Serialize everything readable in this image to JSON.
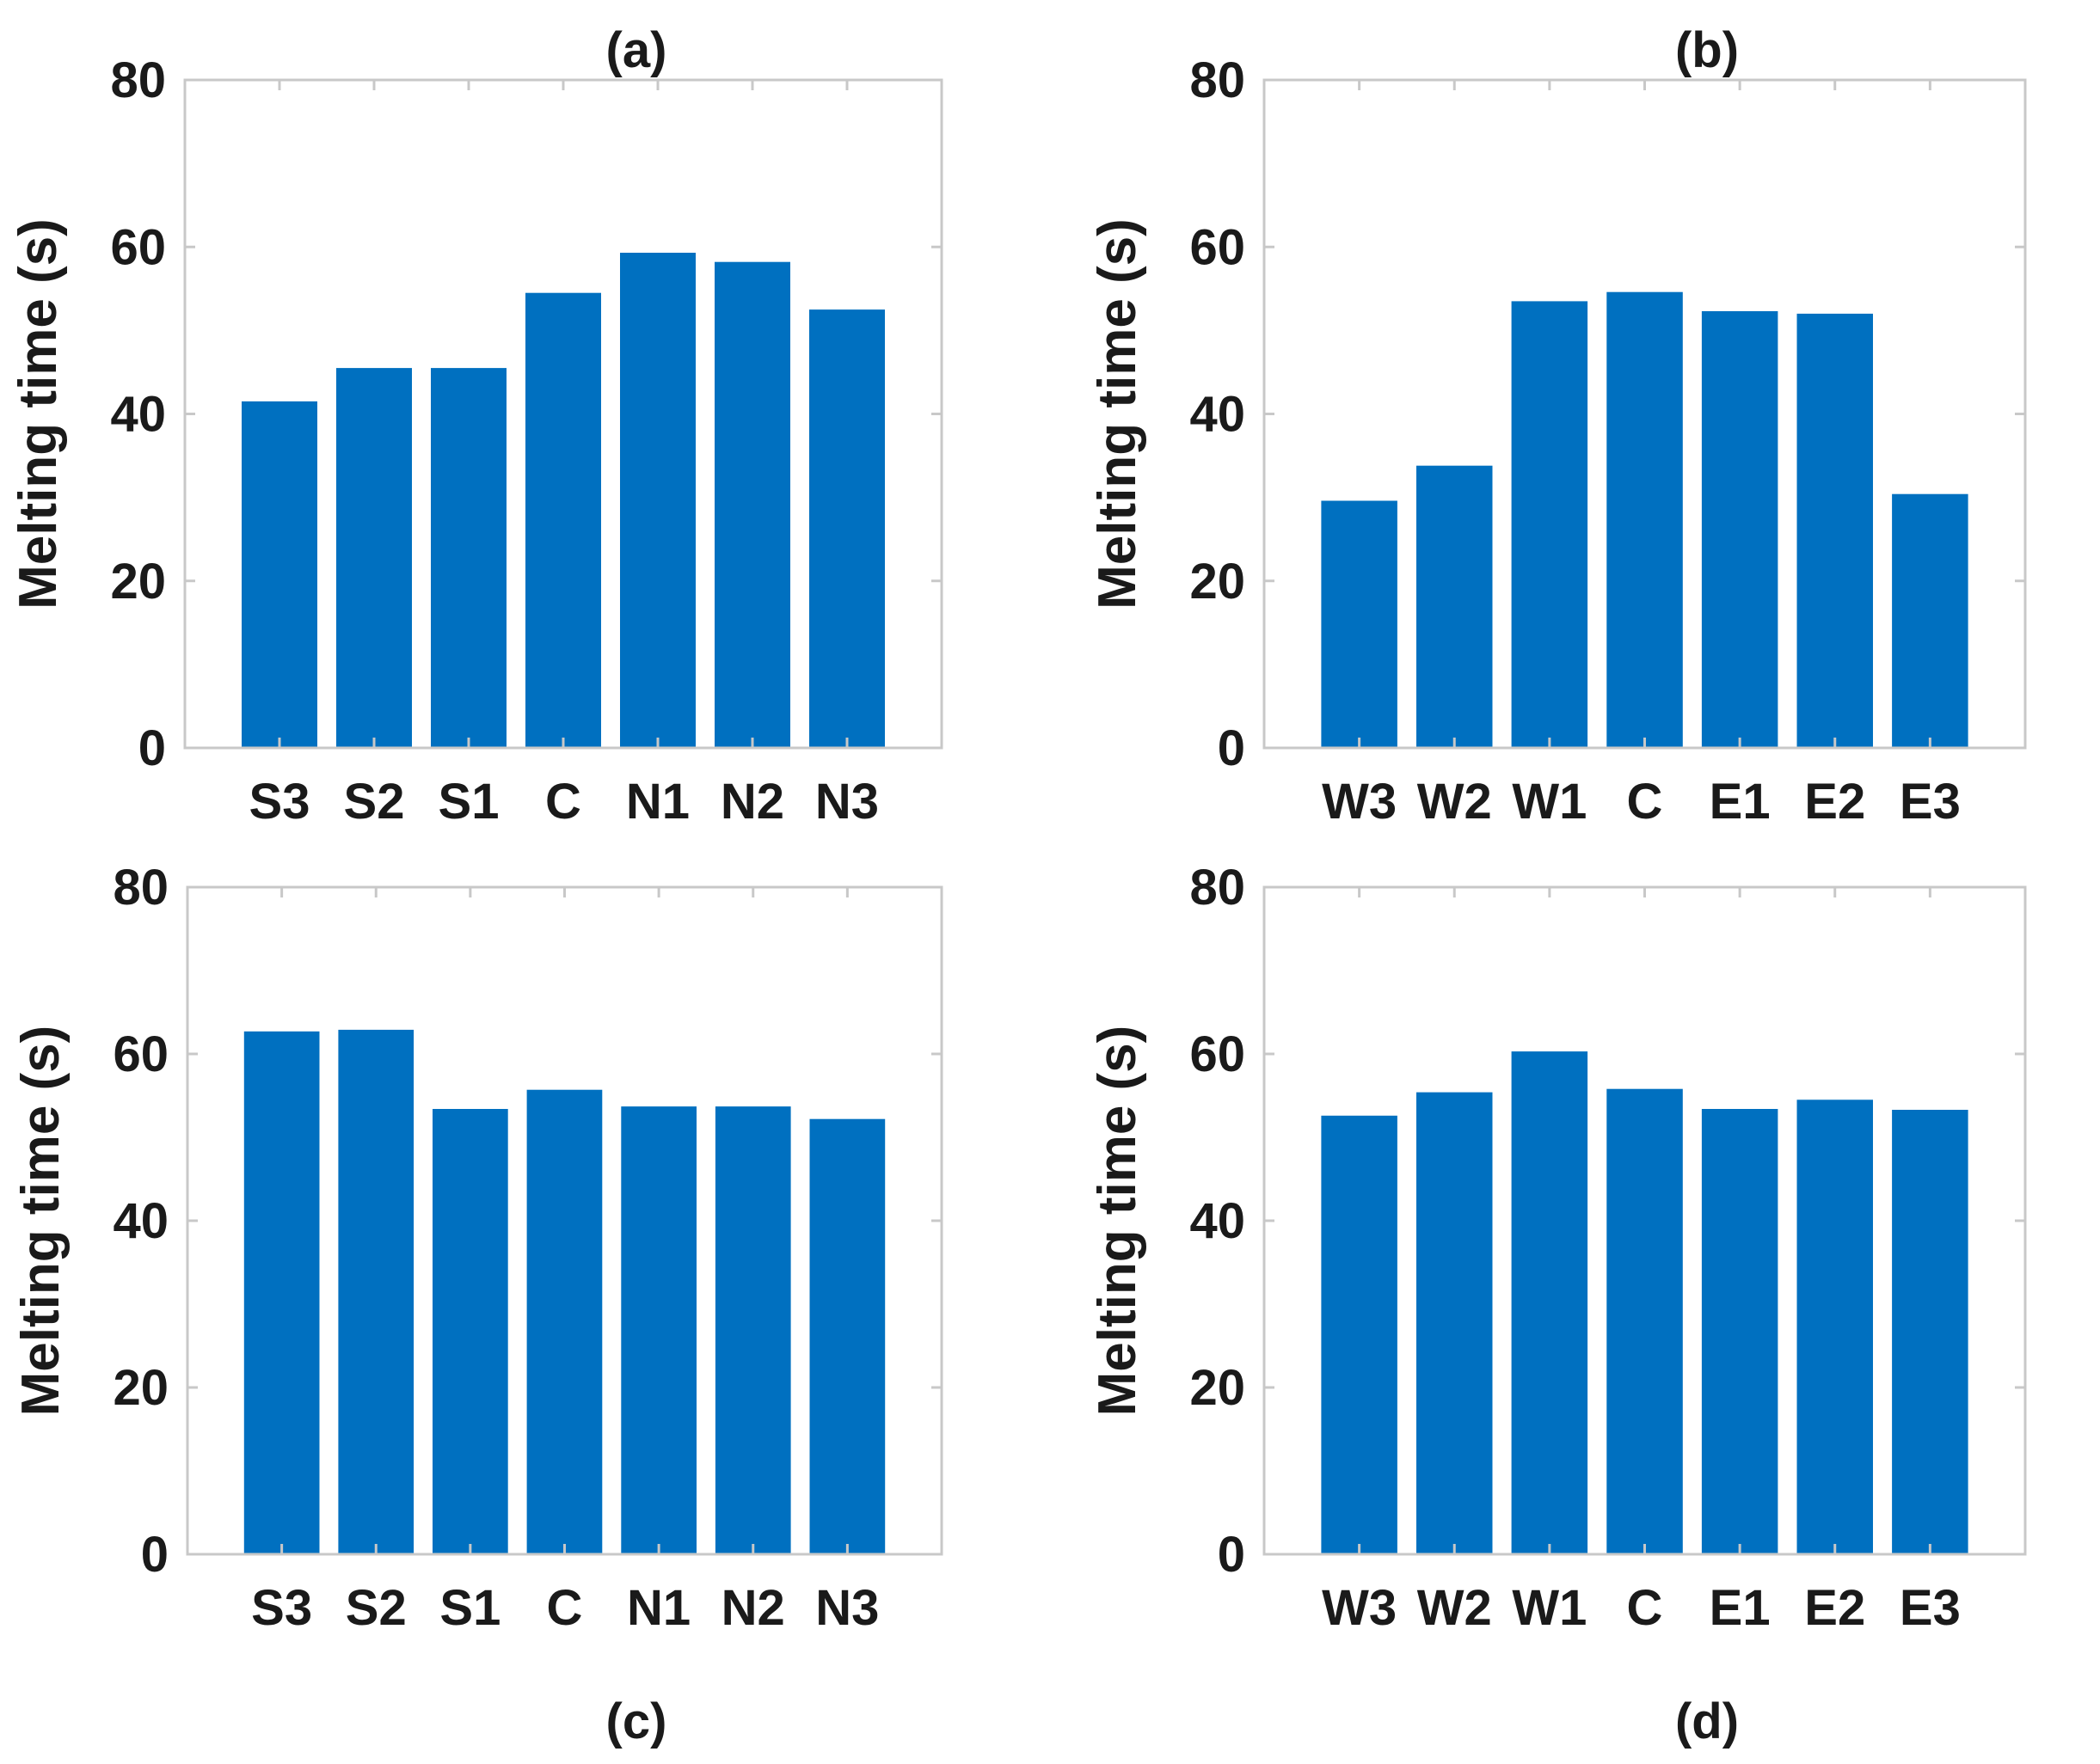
{
  "chart_data": [
    {
      "type": "bar",
      "panel_label": "(a)",
      "label_position": "top",
      "categories": [
        "S3",
        "S2",
        "S1",
        "C",
        "N1",
        "N2",
        "N3"
      ],
      "values": [
        41.5,
        45.5,
        45.5,
        54.5,
        59.3,
        58.2,
        52.5
      ],
      "ylabel": "Melting time (s)",
      "ylim": [
        0,
        80
      ],
      "yticks": [
        0,
        20,
        40,
        60,
        80
      ],
      "grid": false,
      "bar_color": "#0070c0"
    },
    {
      "type": "bar",
      "panel_label": "(b)",
      "label_position": "top",
      "categories": [
        "W3",
        "W2",
        "W1",
        "C",
        "E1",
        "E2",
        "E3"
      ],
      "values": [
        29.6,
        33.8,
        53.5,
        54.6,
        52.3,
        52.0,
        30.4
      ],
      "ylabel": "Melting time (s)",
      "ylim": [
        0,
        80
      ],
      "yticks": [
        0,
        20,
        40,
        60,
        80
      ],
      "grid": false,
      "bar_color": "#0070c0"
    },
    {
      "type": "bar",
      "panel_label": "(c)",
      "label_position": "bottom",
      "categories": [
        "S3",
        "S2",
        "S1",
        "C",
        "N1",
        "N2",
        "N3"
      ],
      "values": [
        62.7,
        62.9,
        53.4,
        55.7,
        53.7,
        53.7,
        52.2
      ],
      "ylabel": "Melting time (s)",
      "ylim": [
        0,
        80
      ],
      "yticks": [
        0,
        20,
        40,
        60,
        80
      ],
      "grid": false,
      "bar_color": "#0070c0"
    },
    {
      "type": "bar",
      "panel_label": "(d)",
      "label_position": "bottom",
      "categories": [
        "W3",
        "W2",
        "W1",
        "C",
        "E1",
        "E2",
        "E3"
      ],
      "values": [
        52.6,
        55.4,
        60.3,
        55.8,
        53.4,
        54.5,
        53.3
      ],
      "ylabel": "Melting time (s)",
      "ylim": [
        0,
        80
      ],
      "yticks": [
        0,
        20,
        40,
        60,
        80
      ],
      "grid": false,
      "bar_color": "#0070c0"
    }
  ]
}
